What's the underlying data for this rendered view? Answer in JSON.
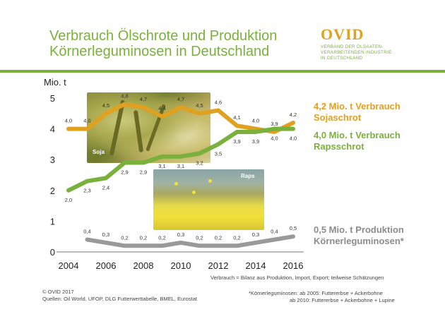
{
  "header": {
    "title_line1": "Verbrauch Ölschrote und Produktion",
    "title_line2": "Körnerleguminosen in Deutschland"
  },
  "logo": {
    "word": "OVID",
    "tagline1": "VERBAND DER ÖLSAATEN-",
    "tagline2": "VERARBEITENDEN INDUSTRIE",
    "tagline3": "IN DEUTSCHLAND"
  },
  "photos": {
    "soja_label": "Soja",
    "raps_label": "Raps"
  },
  "annotations": {
    "soja_line1": "4,2 Mio. t Verbrauch",
    "soja_line2": "Sojaschrot",
    "raps_line1": "4,0 Mio. t Verbrauch",
    "raps_line2": "Rapsschrot",
    "leg_line1": "0,5 Mio. t Produktion",
    "leg_line2": "Körnerleguminosen*"
  },
  "footer": {
    "definition": "Verbrauch = Bilanz aus Produktion, Import, Export;  teilweise Schätzungen",
    "copyright": "© OVID 2017",
    "sources": "Quellen: Oil World, UFOP, DLG Futterwerttabelle, BMEL, Eurostat",
    "footnote1": "*Körnerleguminosen: ab 2005: Futtererbse + Ackerbohne",
    "footnote2": "ab 2010: Futtererbse + Ackerbohne + Lupine"
  },
  "chart_data": {
    "type": "line",
    "ylabel": "Mio. t",
    "ylim": [
      0,
      5
    ],
    "xlim": [
      2004,
      2016
    ],
    "y_ticks": [
      "0",
      "1",
      "2",
      "3",
      "4",
      "5"
    ],
    "x_ticks": [
      "2004",
      "2006",
      "2008",
      "2010",
      "2012",
      "2014",
      "2016"
    ],
    "grid": false,
    "series": [
      {
        "color": "#e0a020",
        "x": [
          2004,
          2005,
          2006,
          2007,
          2008,
          2009,
          2010,
          2011,
          2012,
          2013,
          2014,
          2015,
          2016
        ],
        "values": [
          4.0,
          4.0,
          4.5,
          4.8,
          4.7,
          4.4,
          4.7,
          4.5,
          4.6,
          4.1,
          4.0,
          3.9,
          4.2
        ],
        "labels": [
          "4,0",
          "4,0",
          "4,5",
          "4,8",
          "4,7",
          "4,4",
          "4,7",
          "4,5",
          "4,6",
          "4,1",
          "4,0",
          "3,9",
          "4,2"
        ]
      },
      {
        "color": "#7ab03c",
        "x": [
          2004,
          2005,
          2006,
          2007,
          2008,
          2009,
          2010,
          2011,
          2012,
          2013,
          2014,
          2015,
          2016
        ],
        "values": [
          2.0,
          2.3,
          2.4,
          2.9,
          2.9,
          3.1,
          3.1,
          3.2,
          3.5,
          3.9,
          3.9,
          4.0,
          4.0
        ],
        "labels": [
          "2,0",
          "2,3",
          "2,4",
          "2,9",
          "2,9",
          "3,1",
          "3,1",
          "3,2",
          "3,5",
          "3,9",
          "3,9",
          "4,0",
          "4,0"
        ]
      },
      {
        "color": "#999999",
        "x": [
          2005,
          2006,
          2007,
          2008,
          2009,
          2010,
          2011,
          2012,
          2013,
          2014,
          2015,
          2016
        ],
        "values": [
          0.4,
          0.3,
          0.2,
          0.2,
          0.2,
          0.3,
          0.2,
          0.2,
          0.2,
          0.3,
          0.4,
          0.5
        ],
        "labels": [
          "0,4",
          "0,3",
          "0,2",
          "0,2",
          "0,2",
          "0,3",
          "0,2",
          "0,2",
          "0,2",
          "0,3",
          "0,4",
          "0,5"
        ]
      }
    ]
  }
}
